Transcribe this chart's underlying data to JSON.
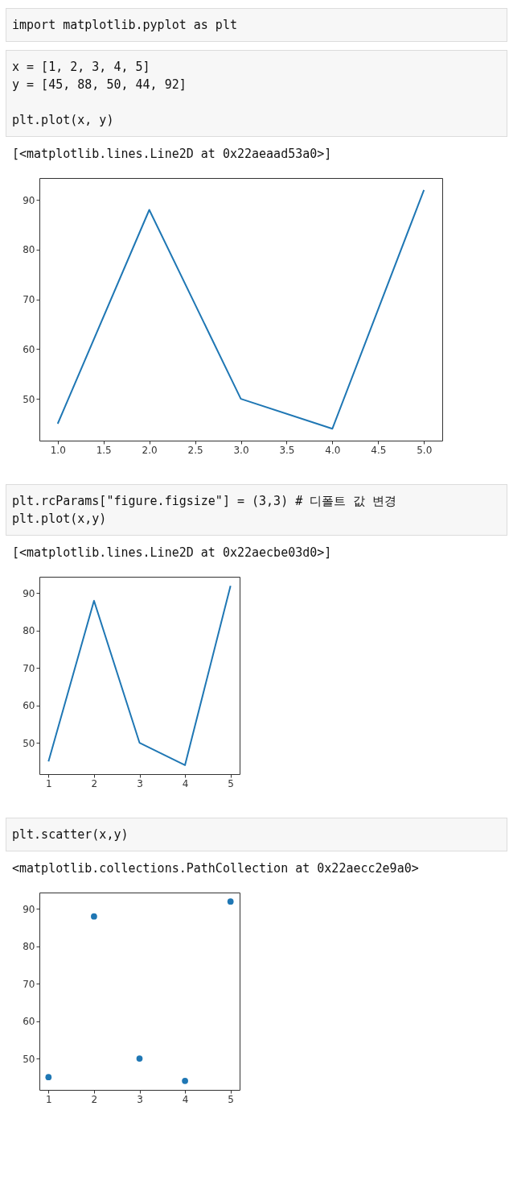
{
  "chart_data": [
    {
      "type": "line",
      "annotations": [
        "import matplotlib.pyplot as plt",
        "x = [1, 2, 3, 4, 5]\ny = [45, 88, 50, 44, 92]\n\nplt.plot(x, y)",
        "[<matplotlib.lines.Line2D at 0x22aeaad53a0>]"
      ],
      "x": [
        1,
        2,
        3,
        4,
        5
      ],
      "values": [
        45,
        88,
        50,
        44,
        92
      ],
      "color": "#1f77b4",
      "xlim": [
        0.8,
        5.2
      ],
      "ylim": [
        41.6,
        94.4
      ],
      "xticks": [
        {
          "value": 1,
          "label": "1.0"
        },
        1.5,
        {
          "value": 2,
          "label": "2.0"
        },
        2.5,
        {
          "value": 3,
          "label": "3.0"
        },
        3.5,
        {
          "value": 4,
          "label": "4.0"
        },
        4.5,
        {
          "value": 5,
          "label": "5.0"
        }
      ],
      "yticks": [
        50,
        60,
        70,
        80,
        90
      ],
      "grid": false,
      "line_style": "solid"
    },
    {
      "type": "line",
      "annotations": [
        "plt.rcParams[\"figure.figsize\"] = (3,3) # 디폴트 값 변경\nplt.plot(x,y)",
        "[<matplotlib.lines.Line2D at 0x22aecbe03d0>]"
      ],
      "x": [
        1,
        2,
        3,
        4,
        5
      ],
      "values": [
        45,
        88,
        50,
        44,
        92
      ],
      "color": "#1f77b4",
      "xlim": [
        0.8,
        5.2
      ],
      "ylim": [
        41.6,
        94.4
      ],
      "xticks": [
        1,
        2,
        3,
        4,
        5
      ],
      "yticks": [
        50,
        60,
        70,
        80,
        90
      ],
      "grid": false,
      "line_style": "solid"
    },
    {
      "type": "scatter",
      "annotations": [
        "plt.scatter(x,y)",
        "<matplotlib.collections.PathCollection at 0x22aecc2e9a0>"
      ],
      "x": [
        1,
        2,
        3,
        4,
        5
      ],
      "values": [
        45,
        88,
        50,
        44,
        92
      ],
      "color": "#1f77b4",
      "xlim": [
        0.8,
        5.2
      ],
      "ylim": [
        41.6,
        94.4
      ],
      "xticks": [
        1,
        2,
        3,
        4,
        5
      ],
      "yticks": [
        50,
        60,
        70,
        80,
        90
      ],
      "grid": false,
      "marker": "circle"
    }
  ]
}
